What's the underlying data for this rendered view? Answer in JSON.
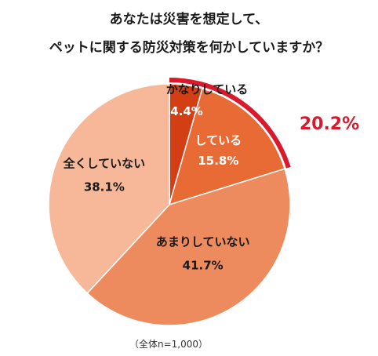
{
  "chart_data": {
    "type": "pie",
    "title": [
      "あなたは災害を想定して、",
      "ペットに関する防災対策を何かしていますか？"
    ],
    "slices": [
      {
        "label": "かなりしている",
        "value": 4.4,
        "value_label": "4.4%",
        "color": "#d43e14",
        "label_color": "#1a1a1a",
        "value_color": "#ffffff"
      },
      {
        "label": "している",
        "value": 15.8,
        "value_label": "15.8%",
        "color": "#e86a35",
        "label_color": "#ffffff",
        "value_color": "#ffffff"
      },
      {
        "label": "あまりしていない",
        "value": 41.7,
        "value_label": "41.7%",
        "color": "#ee8b5e",
        "label_color": "#1a1a1a",
        "value_color": "#1a1a1a"
      },
      {
        "label": "全くしていない",
        "value": 38.1,
        "value_label": "38.1%",
        "color": "#f6b898",
        "label_color": "#1a1a1a",
        "value_color": "#1a1a1a"
      }
    ],
    "highlight": {
      "label": "20.2%",
      "color": "#d9192d"
    },
    "footnote": "（全体n=1,000）",
    "start": "top",
    "direction": "clockwise"
  }
}
